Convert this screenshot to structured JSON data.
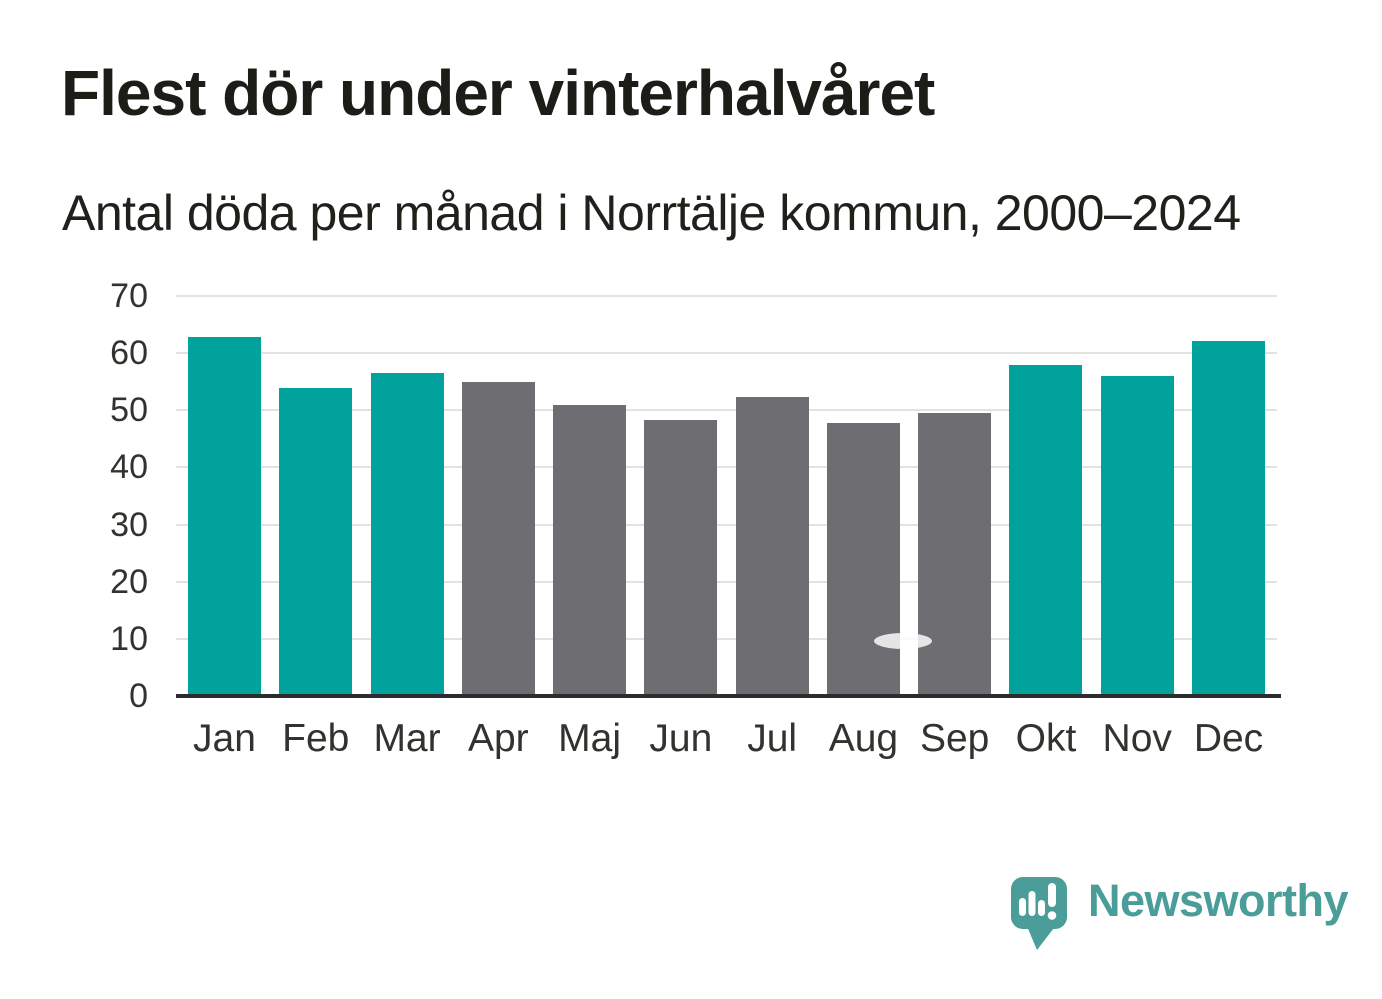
{
  "header": {
    "title": "Flest dör under vinterhalvåret",
    "subtitle": "Antal döda per månad i Norrtälje kommun, 2000–2024"
  },
  "chart_data": {
    "type": "bar",
    "title": "Flest dör under vinterhalvåret",
    "subtitle": "Antal döda per månad i Norrtälje kommun, 2000–2024",
    "categories": [
      "Jan",
      "Feb",
      "Mar",
      "Apr",
      "Maj",
      "Jun",
      "Jul",
      "Aug",
      "Sep",
      "Okt",
      "Nov",
      "Dec"
    ],
    "values": [
      62.8,
      53.9,
      56.6,
      54.9,
      51.0,
      48.3,
      52.3,
      47.8,
      49.6,
      58.0,
      56.0,
      62.1
    ],
    "bar_colors": [
      "#00A29B",
      "#00A29B",
      "#00A29B",
      "#6E6E72",
      "#6E6E72",
      "#6E6E72",
      "#6E6E72",
      "#6E6E72",
      "#6E6E72",
      "#00A29B",
      "#00A29B",
      "#00A29B"
    ],
    "palette": {
      "winter_months": "#00A29B",
      "summer_months": "#6E6E72"
    },
    "xlabel": "",
    "ylabel": "",
    "ylim": [
      0,
      70
    ],
    "yticks": [
      0,
      10,
      20,
      30,
      40,
      50,
      60,
      70
    ],
    "grid": "horizontal",
    "grid_color": "#E2E2E2",
    "axis_color": "#2D2D2D",
    "legend": "none"
  },
  "branding": {
    "logo_text": "Newsworthy",
    "brand_color": "#4A9D98"
  }
}
